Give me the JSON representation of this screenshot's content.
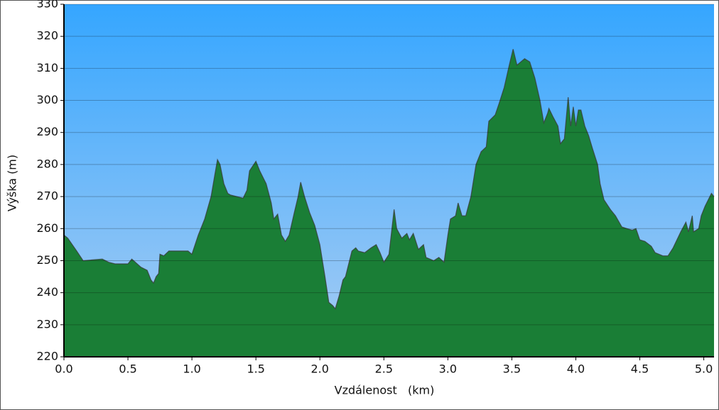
{
  "chart_data": {
    "type": "area",
    "xlabel": "Vzdálenost   (km)",
    "ylabel": "Výška (m)",
    "x": [
      0.0,
      0.03,
      0.1,
      0.15,
      0.3,
      0.35,
      0.4,
      0.5,
      0.53,
      0.6,
      0.65,
      0.68,
      0.7,
      0.72,
      0.74,
      0.75,
      0.78,
      0.82,
      0.9,
      0.97,
      1.0,
      1.05,
      1.1,
      1.15,
      1.18,
      1.2,
      1.22,
      1.25,
      1.28,
      1.3,
      1.35,
      1.4,
      1.43,
      1.45,
      1.5,
      1.53,
      1.58,
      1.62,
      1.64,
      1.67,
      1.7,
      1.73,
      1.76,
      1.8,
      1.83,
      1.85,
      1.88,
      1.92,
      1.96,
      2.0,
      2.04,
      2.07,
      2.1,
      2.12,
      2.15,
      2.18,
      2.2,
      2.25,
      2.28,
      2.3,
      2.35,
      2.4,
      2.44,
      2.47,
      2.5,
      2.54,
      2.58,
      2.6,
      2.64,
      2.68,
      2.7,
      2.73,
      2.77,
      2.81,
      2.83,
      2.89,
      2.93,
      2.97,
      3.0,
      3.02,
      3.06,
      3.08,
      3.11,
      3.14,
      3.18,
      3.22,
      3.26,
      3.3,
      3.32,
      3.37,
      3.4,
      3.44,
      3.48,
      3.51,
      3.54,
      3.6,
      3.64,
      3.68,
      3.72,
      3.75,
      3.78,
      3.79,
      3.82,
      3.86,
      3.88,
      3.91,
      3.94,
      3.96,
      3.98,
      4.0,
      4.02,
      4.04,
      4.07,
      4.1,
      4.13,
      4.17,
      4.19,
      4.22,
      4.27,
      4.31,
      4.36,
      4.4,
      4.44,
      4.47,
      4.5,
      4.54,
      4.59,
      4.62,
      4.68,
      4.72,
      4.76,
      4.82,
      4.86,
      4.88,
      4.91,
      4.92,
      4.96,
      4.98,
      5.01,
      5.06,
      5.08
    ],
    "values": [
      258,
      257,
      253,
      250,
      250.5,
      249.5,
      249,
      249,
      250.5,
      248,
      247,
      244,
      243,
      245,
      246,
      252,
      251.5,
      253,
      253,
      253,
      252,
      258,
      263,
      270,
      277,
      281.5,
      280,
      274,
      271,
      270.5,
      270,
      269.5,
      272,
      278,
      281,
      278,
      274,
      268,
      263,
      264.5,
      258,
      256,
      258,
      265,
      270,
      274.5,
      270,
      265,
      261,
      255,
      245,
      237,
      236,
      235,
      239,
      244,
      245,
      253,
      254,
      253,
      252.5,
      254,
      255,
      252.5,
      249.5,
      252,
      266,
      260,
      257,
      258.5,
      256.5,
      258.5,
      253.5,
      255,
      251,
      250,
      251,
      249.5,
      258,
      263,
      264,
      268,
      264,
      264,
      270,
      280,
      284,
      285.5,
      293.5,
      295.5,
      299,
      304,
      311,
      316,
      311,
      313,
      312,
      307,
      300,
      293,
      296,
      297.5,
      295,
      292,
      286.5,
      288,
      301,
      292,
      298,
      292,
      297,
      297,
      292,
      289,
      285,
      280,
      274,
      269,
      266,
      264,
      260.5,
      260,
      259.5,
      260,
      256.5,
      256,
      254.5,
      252.5,
      251.5,
      251.5,
      254,
      259,
      262,
      259,
      264,
      259,
      260,
      264,
      267,
      271,
      270
    ],
    "color": "#1fa54a",
    "xlim": [
      0,
      5.08
    ],
    "ylim": [
      220,
      330
    ],
    "xticks": [
      {
        "value": 0,
        "label": "0.0"
      },
      {
        "value": 0.5,
        "label": "0.5"
      },
      {
        "value": 1,
        "label": "1.0"
      },
      {
        "value": 1.5,
        "label": "1.5"
      },
      {
        "value": 2,
        "label": "2.0"
      },
      {
        "value": 2.5,
        "label": "2.5"
      },
      {
        "value": 3,
        "label": "3.0"
      },
      {
        "value": 3.5,
        "label": "3.5"
      },
      {
        "value": 4,
        "label": "4.0"
      },
      {
        "value": 4.5,
        "label": "4.5"
      },
      {
        "value": 5,
        "label": "5.0"
      }
    ],
    "yticks": [
      220,
      230,
      240,
      250,
      260,
      270,
      280,
      290,
      300,
      310,
      320,
      330
    ],
    "grid": true
  }
}
